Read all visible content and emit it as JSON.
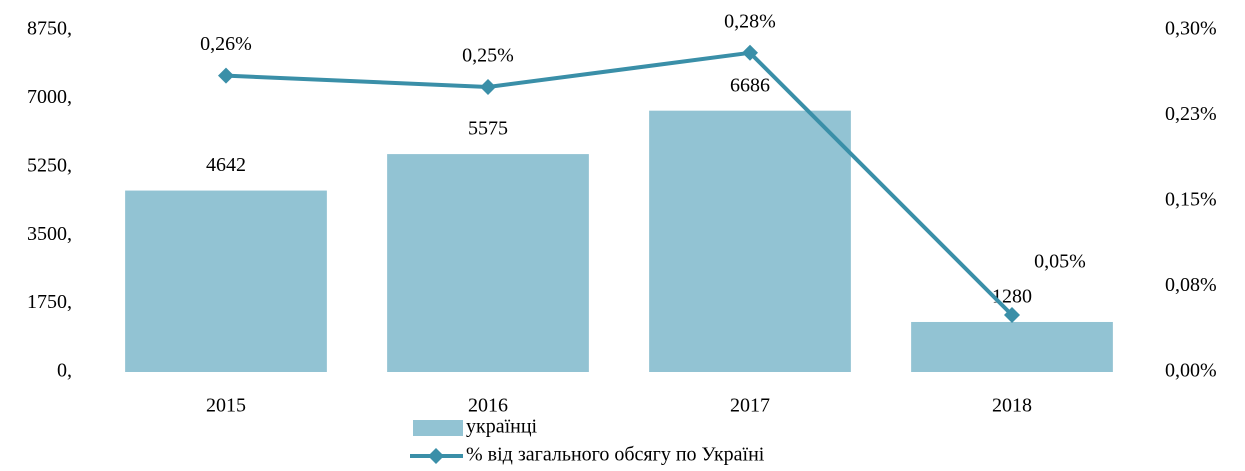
{
  "chart_data": {
    "type": "bar",
    "categories": [
      "2015",
      "2016",
      "2017",
      "2018"
    ],
    "series": [
      {
        "name": "українці",
        "type": "bar",
        "color": "#92c3d3",
        "values": [
          4642,
          5575,
          6686,
          1280
        ]
      },
      {
        "name": "% від загального обсягу по Україні",
        "type": "line",
        "axis": "y2",
        "color": "#3a8fa8",
        "values": [
          0.26,
          0.25,
          0.28,
          0.05
        ],
        "value_labels": [
          "0,26%",
          "0,25%",
          "0,28%",
          "0,05%"
        ]
      }
    ],
    "ylim": [
      0,
      8750
    ],
    "yticks": [
      {
        "value": 0,
        "label": "0,"
      },
      {
        "value": 1750,
        "label": "1750,"
      },
      {
        "value": 3500,
        "label": "3500,"
      },
      {
        "value": 5250,
        "label": "5250,"
      },
      {
        "value": 7000,
        "label": "7000,"
      },
      {
        "value": 8750,
        "label": "8750,"
      }
    ],
    "y2lim": [
      0,
      0.3
    ],
    "y2ticks": [
      {
        "value": 0,
        "label": "0,00%"
      },
      {
        "value": 0.075,
        "label": "0,08%"
      },
      {
        "value": 0.15,
        "label": "0,15%"
      },
      {
        "value": 0.225,
        "label": "0,23%"
      },
      {
        "value": 0.3,
        "label": "0,30%"
      }
    ],
    "grid": false,
    "legend": "bottom"
  }
}
